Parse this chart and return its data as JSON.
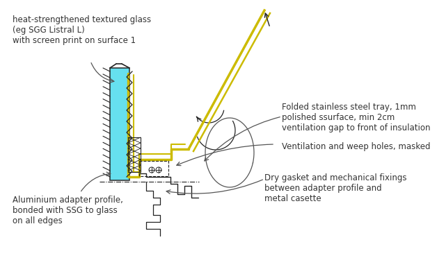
{
  "bg_color": "#ffffff",
  "label_top_left": "heat-strengthened textured glass\n(eg SGG Listral L)\nwith screen print on surface 1",
  "label_bottom_left": "Aluminium adapter profile,\nbonded with SSG to glass\non all edges",
  "label_top_right": "Folded stainless steel tray, 1mm\npolished ssurface, min 2cm\nventilation gap to front of insulation",
  "label_mid_right": "Ventilation and weep holes, masked",
  "label_bottom_right": "Dry gasket and mechanical fixings\nbetween adapter profile and\nmetal casette",
  "glass_color": "#55ddee",
  "steel_color": "#ccbb00",
  "sketch_line_color": "#222222",
  "annotation_color": "#555555",
  "font_size": 8.5
}
